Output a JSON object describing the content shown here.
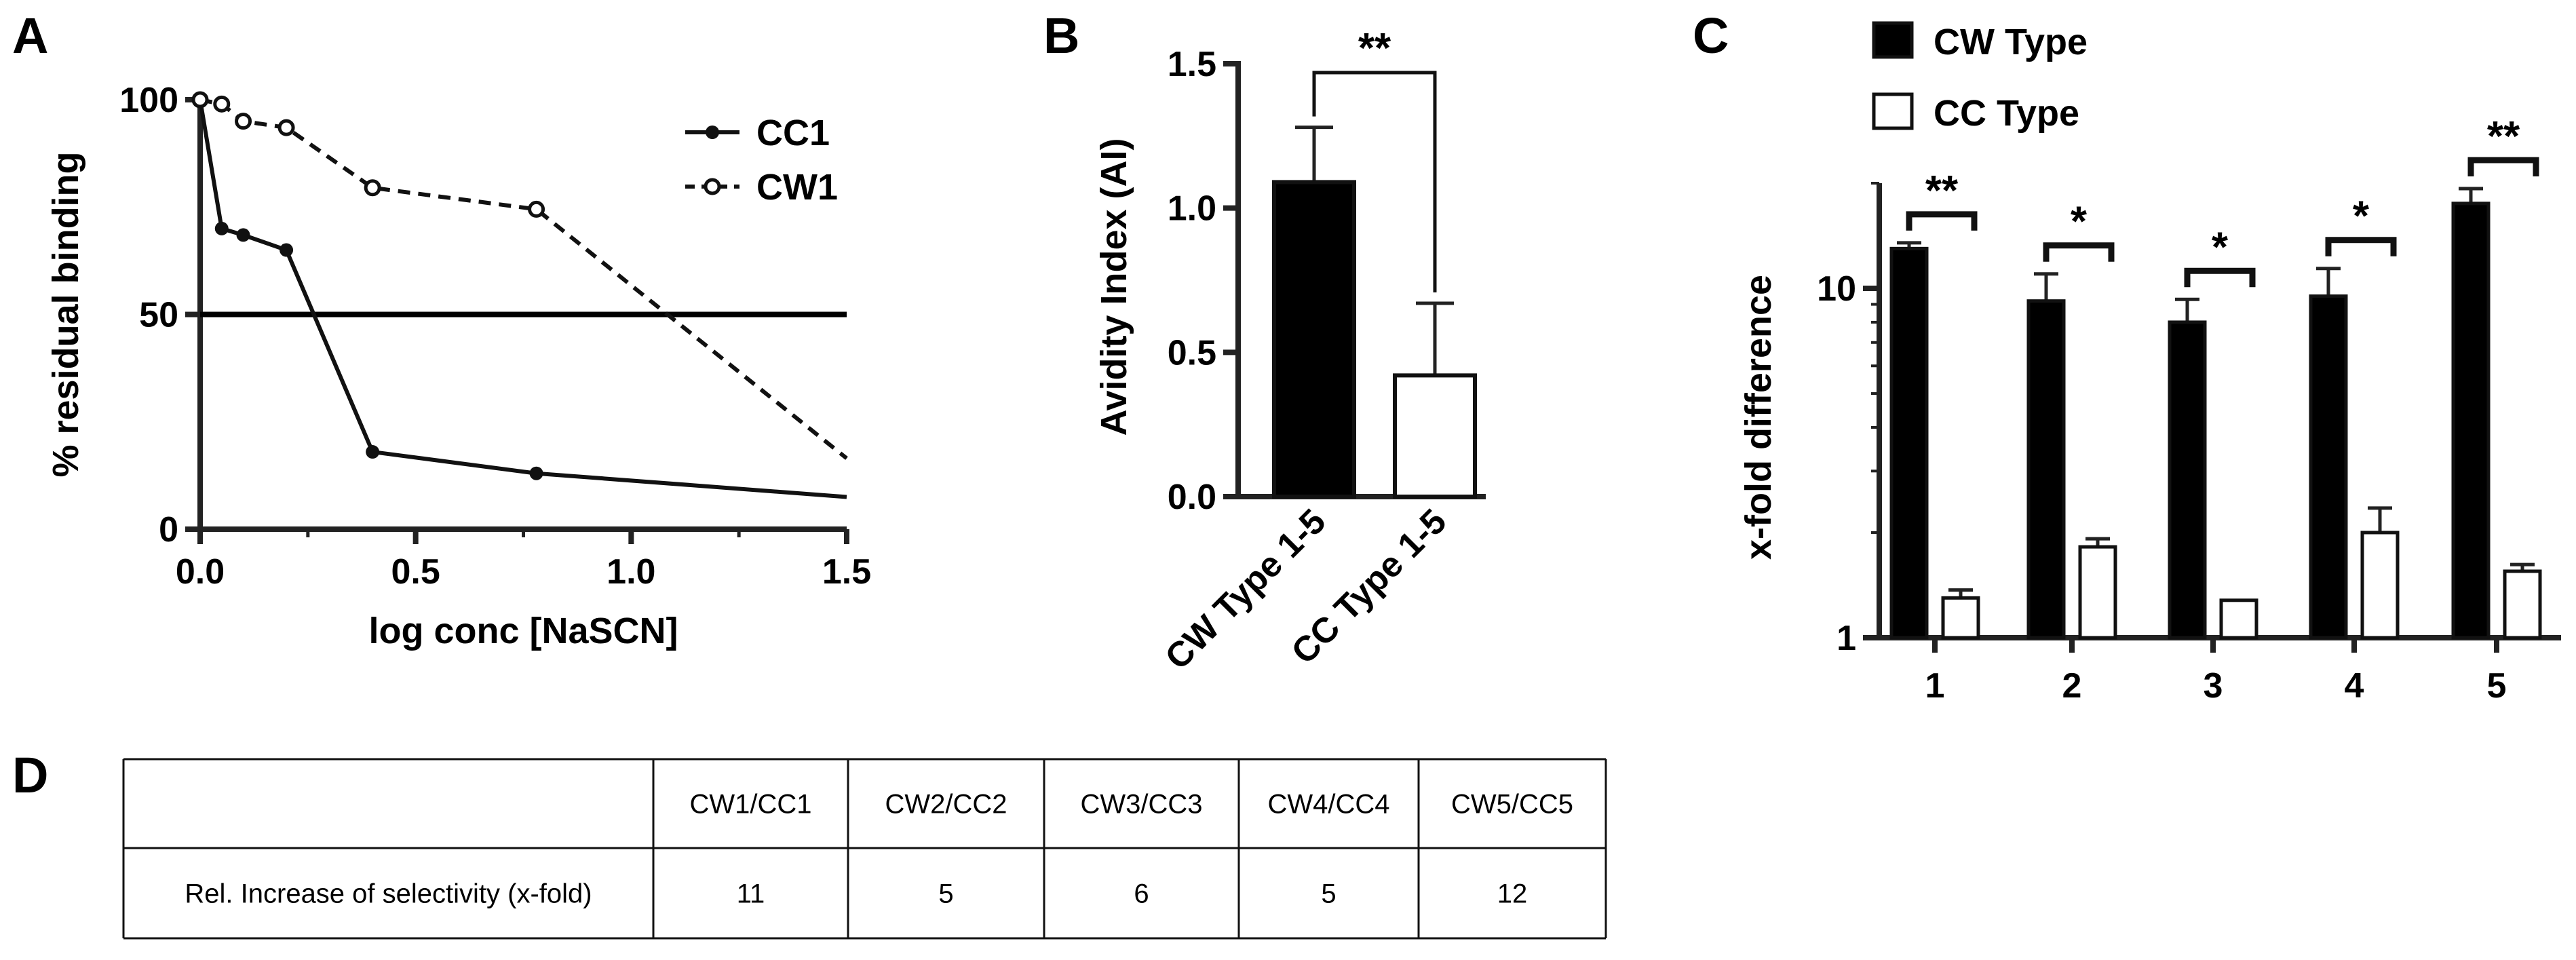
{
  "chart_data": [
    {
      "panel": "A",
      "type": "line",
      "title": "",
      "xlabel": "log conc [NaSCN]",
      "ylabel": "% residual binding",
      "xlim": [
        0,
        1.5
      ],
      "ylim": [
        0,
        100
      ],
      "xticks": [
        "0.0",
        "0.5",
        "1.0",
        "1.5"
      ],
      "yticks": [
        "0",
        "50",
        "100"
      ],
      "reference_line": 50,
      "legend_position": "top-right",
      "series": [
        {
          "name": "CC1",
          "style": "solid",
          "marker": "filled-circle",
          "x": [
            0,
            0.05,
            0.1,
            0.2,
            0.4,
            0.78,
            1.5
          ],
          "y": [
            100,
            70,
            68.5,
            65,
            18,
            13,
            7.5
          ]
        },
        {
          "name": "CW1",
          "style": "dashed",
          "marker": "open-circle",
          "x": [
            0,
            0.05,
            0.1,
            0.2,
            0.4,
            0.78,
            1.5
          ],
          "y": [
            100,
            99,
            95,
            93.5,
            79.5,
            74.5,
            16.5
          ]
        }
      ]
    },
    {
      "panel": "B",
      "type": "bar",
      "title": "",
      "xlabel": "",
      "ylabel": "Avidity Index (AI)",
      "ylim": [
        0,
        1.5
      ],
      "yticks": [
        "0.0",
        "0.5",
        "1.0",
        "1.5"
      ],
      "categories": [
        "CW Type 1-5",
        "CC Type 1-5"
      ],
      "values": [
        1.09,
        0.42
      ],
      "errors": [
        0.19,
        0.25
      ],
      "fills": [
        "#000000",
        "#ffffff"
      ],
      "significance": "**"
    },
    {
      "panel": "C",
      "type": "bar",
      "title": "",
      "xlabel": "",
      "ylabel": "x-fold difference",
      "yscale": "log",
      "ylim": [
        1,
        20
      ],
      "yticks": [
        "1",
        "10"
      ],
      "categories": [
        "1",
        "2",
        "3",
        "4",
        "5"
      ],
      "legend_position": "top-left",
      "series": [
        {
          "name": "CW Type",
          "fill": "#000000",
          "values": [
            13,
            9.2,
            8,
            9.5,
            17.5
          ],
          "errors": [
            0.5,
            1.8,
            1.3,
            1.9,
            1.8
          ]
        },
        {
          "name": "CC Type",
          "fill": "#ffffff",
          "values": [
            1.3,
            1.82,
            1.28,
            2.0,
            1.55
          ],
          "errors": [
            0.07,
            0.1,
            0,
            0.35,
            0.07
          ]
        }
      ],
      "significance": [
        "**",
        "*",
        "*",
        "*",
        "**"
      ]
    },
    {
      "panel": "D",
      "type": "table",
      "headers": [
        "",
        "CW1/CC1",
        "CW2/CC2",
        "CW3/CC3",
        "CW4/CC4",
        "CW5/CC5"
      ],
      "rows": [
        [
          "Rel. Increase of selectivity (x-fold)",
          "11",
          "5",
          "6",
          "5",
          "12"
        ]
      ]
    }
  ]
}
